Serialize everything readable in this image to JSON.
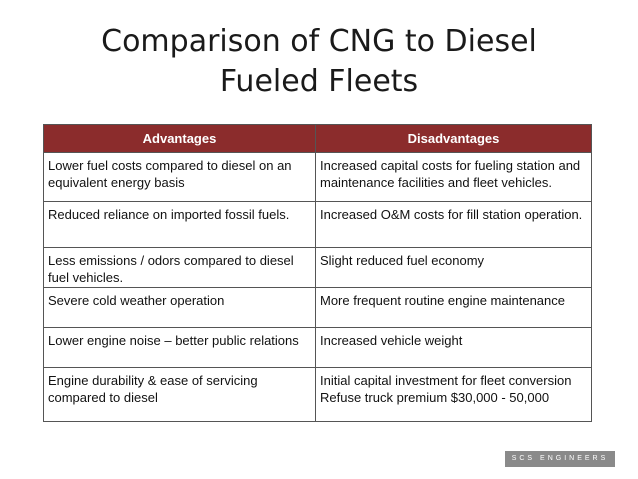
{
  "slide": {
    "title_line1": "Comparison of CNG to Diesel",
    "title_line2": "Fueled Fleets"
  },
  "table": {
    "headers": [
      "Advantages",
      "Disadvantages"
    ],
    "rows": [
      {
        "advantage": "Lower fuel costs compared to diesel on an equivalent energy basis",
        "disadvantage": "Increased capital costs for fueling station and maintenance facilities and fleet vehicles."
      },
      {
        "advantage": "Reduced reliance on imported fossil fuels.",
        "disadvantage": "Increased O&M costs for fill station operation."
      },
      {
        "advantage": "Less emissions / odors compared to diesel fuel vehicles.",
        "disadvantage": "Slight reduced fuel economy"
      },
      {
        "advantage": "Severe cold weather operation",
        "disadvantage": "More frequent routine engine maintenance"
      },
      {
        "advantage": "Lower engine noise – better public relations",
        "disadvantage": "Increased vehicle weight"
      },
      {
        "advantage": "Engine durability & ease of servicing compared to diesel",
        "disadvantage": "Initial capital investment for fleet conversion",
        "disadvantage_extra": "Refuse truck premium $30,000 - 50,000"
      }
    ]
  },
  "logo": {
    "text": "SCS ENGINEERS"
  },
  "colors": {
    "header_background": "#8b2c2c",
    "header_text": "#ffffff",
    "logo_background": "#8a8a8a"
  }
}
